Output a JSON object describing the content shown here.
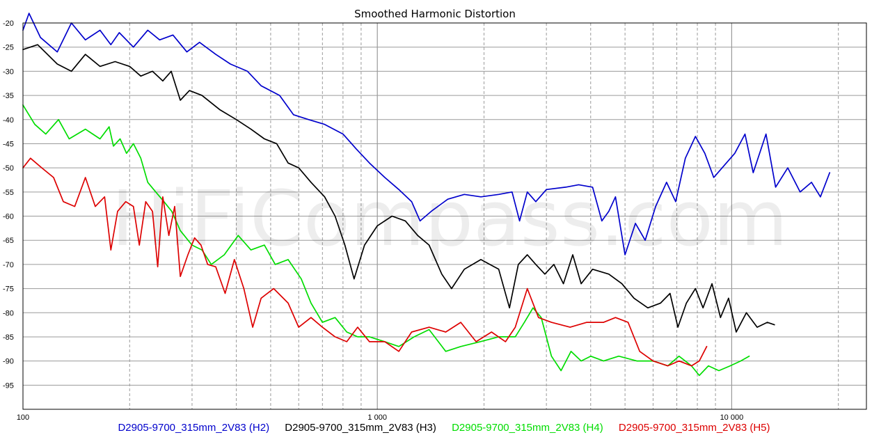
{
  "chart_data": {
    "type": "line",
    "title": "Smoothed Harmonic Distortion",
    "watermark": "HiFiCompass.com",
    "x_scale": "log",
    "xlim": [
      100,
      24000
    ],
    "ylim": [
      -100,
      -20
    ],
    "grid": true,
    "legend_position": "bottom",
    "x_tick_labels": [
      {
        "value": 100,
        "label": "100"
      },
      {
        "value": 1000,
        "label": "1 000"
      },
      {
        "value": 10000,
        "label": "10 000"
      }
    ],
    "y_ticks": [
      -20,
      -25,
      -30,
      -35,
      -40,
      -45,
      -50,
      -55,
      -60,
      -65,
      -70,
      -75,
      -80,
      -85,
      -90,
      -95
    ],
    "series": [
      {
        "name": "D2905-9700_315mm_2V83 (H2)",
        "color": "#0000cc",
        "points": [
          [
            100,
            -21.5
          ],
          [
            104,
            -18
          ],
          [
            112,
            -23
          ],
          [
            125,
            -26
          ],
          [
            137,
            -20
          ],
          [
            150,
            -23.5
          ],
          [
            165,
            -21.5
          ],
          [
            177,
            -24.5
          ],
          [
            187,
            -22
          ],
          [
            205,
            -25
          ],
          [
            225,
            -21.5
          ],
          [
            243,
            -23.5
          ],
          [
            265,
            -22.5
          ],
          [
            290,
            -26
          ],
          [
            315,
            -24
          ],
          [
            350,
            -26.5
          ],
          [
            385,
            -28.5
          ],
          [
            430,
            -30
          ],
          [
            470,
            -33
          ],
          [
            530,
            -35
          ],
          [
            580,
            -39
          ],
          [
            640,
            -40
          ],
          [
            710,
            -41
          ],
          [
            800,
            -43
          ],
          [
            870,
            -46
          ],
          [
            950,
            -49
          ],
          [
            1050,
            -52
          ],
          [
            1150,
            -54.5
          ],
          [
            1250,
            -57
          ],
          [
            1320,
            -61
          ],
          [
            1420,
            -59
          ],
          [
            1580,
            -56.5
          ],
          [
            1760,
            -55.5
          ],
          [
            1960,
            -56
          ],
          [
            2200,
            -55.5
          ],
          [
            2400,
            -55
          ],
          [
            2520,
            -61
          ],
          [
            2650,
            -55
          ],
          [
            2800,
            -57
          ],
          [
            3000,
            -54.5
          ],
          [
            3400,
            -54
          ],
          [
            3700,
            -53.5
          ],
          [
            4050,
            -54
          ],
          [
            4300,
            -61
          ],
          [
            4500,
            -59
          ],
          [
            4700,
            -56
          ],
          [
            5000,
            -68
          ],
          [
            5350,
            -61.5
          ],
          [
            5700,
            -65
          ],
          [
            6100,
            -58
          ],
          [
            6550,
            -53
          ],
          [
            6950,
            -57
          ],
          [
            7400,
            -48
          ],
          [
            7900,
            -43.5
          ],
          [
            8400,
            -47
          ],
          [
            8900,
            -52
          ],
          [
            9400,
            -50
          ],
          [
            10200,
            -47
          ],
          [
            10900,
            -43
          ],
          [
            11500,
            -51
          ],
          [
            12500,
            -43
          ],
          [
            13300,
            -54
          ],
          [
            14400,
            -50
          ],
          [
            15600,
            -55
          ],
          [
            16800,
            -53
          ],
          [
            17800,
            -56
          ],
          [
            18900,
            -51
          ]
        ]
      },
      {
        "name": "D2905-9700_315mm_2V83 (H3)",
        "color": "#000000",
        "points": [
          [
            100,
            -25.5
          ],
          [
            110,
            -24.5
          ],
          [
            125,
            -28.5
          ],
          [
            137,
            -30
          ],
          [
            150,
            -26.5
          ],
          [
            165,
            -29
          ],
          [
            182,
            -28
          ],
          [
            200,
            -29
          ],
          [
            215,
            -31
          ],
          [
            232,
            -30
          ],
          [
            248,
            -32
          ],
          [
            262,
            -30
          ],
          [
            278,
            -36
          ],
          [
            295,
            -34
          ],
          [
            320,
            -35
          ],
          [
            360,
            -38
          ],
          [
            400,
            -40
          ],
          [
            440,
            -42
          ],
          [
            480,
            -44
          ],
          [
            520,
            -45
          ],
          [
            560,
            -49
          ],
          [
            600,
            -50
          ],
          [
            650,
            -53
          ],
          [
            710,
            -56
          ],
          [
            760,
            -60
          ],
          [
            810,
            -66
          ],
          [
            860,
            -73
          ],
          [
            920,
            -66
          ],
          [
            1000,
            -62
          ],
          [
            1100,
            -60
          ],
          [
            1200,
            -61
          ],
          [
            1300,
            -64
          ],
          [
            1400,
            -66
          ],
          [
            1520,
            -72
          ],
          [
            1620,
            -75
          ],
          [
            1760,
            -71
          ],
          [
            1960,
            -69
          ],
          [
            2200,
            -71
          ],
          [
            2360,
            -79
          ],
          [
            2500,
            -70
          ],
          [
            2650,
            -68
          ],
          [
            2800,
            -70
          ],
          [
            2970,
            -72
          ],
          [
            3150,
            -70
          ],
          [
            3350,
            -74
          ],
          [
            3560,
            -68
          ],
          [
            3760,
            -74
          ],
          [
            4050,
            -71
          ],
          [
            4500,
            -72
          ],
          [
            4900,
            -74
          ],
          [
            5300,
            -77
          ],
          [
            5800,
            -79
          ],
          [
            6300,
            -78
          ],
          [
            6700,
            -76
          ],
          [
            7050,
            -83
          ],
          [
            7450,
            -78
          ],
          [
            7900,
            -75
          ],
          [
            8300,
            -79
          ],
          [
            8800,
            -74
          ],
          [
            9300,
            -81
          ],
          [
            9800,
            -77
          ],
          [
            10300,
            -84
          ],
          [
            11000,
            -80
          ],
          [
            11800,
            -83
          ],
          [
            12600,
            -82
          ],
          [
            13200,
            -82.5
          ]
        ]
      },
      {
        "name": "D2905-9700_315mm_2V83 (H4)",
        "color": "#00dd00",
        "points": [
          [
            100,
            -37
          ],
          [
            108,
            -41
          ],
          [
            116,
            -43
          ],
          [
            126,
            -40
          ],
          [
            135,
            -44
          ],
          [
            150,
            -42
          ],
          [
            165,
            -44
          ],
          [
            175,
            -41.5
          ],
          [
            180,
            -45.5
          ],
          [
            188,
            -44
          ],
          [
            196,
            -47
          ],
          [
            205,
            -45
          ],
          [
            215,
            -48
          ],
          [
            225,
            -53
          ],
          [
            237,
            -55
          ],
          [
            250,
            -57
          ],
          [
            263,
            -59
          ],
          [
            278,
            -63
          ],
          [
            300,
            -66
          ],
          [
            320,
            -67
          ],
          [
            340,
            -70
          ],
          [
            370,
            -68
          ],
          [
            405,
            -64
          ],
          [
            440,
            -67
          ],
          [
            480,
            -66
          ],
          [
            515,
            -70
          ],
          [
            560,
            -69
          ],
          [
            610,
            -73
          ],
          [
            650,
            -78
          ],
          [
            700,
            -82
          ],
          [
            760,
            -81
          ],
          [
            820,
            -84
          ],
          [
            880,
            -85
          ],
          [
            950,
            -85
          ],
          [
            1050,
            -86
          ],
          [
            1150,
            -87
          ],
          [
            1270,
            -85
          ],
          [
            1400,
            -83.5
          ],
          [
            1560,
            -88
          ],
          [
            1720,
            -87
          ],
          [
            1950,
            -86
          ],
          [
            2200,
            -85
          ],
          [
            2450,
            -85
          ],
          [
            2600,
            -82
          ],
          [
            2750,
            -79
          ],
          [
            2900,
            -81
          ],
          [
            3100,
            -89
          ],
          [
            3300,
            -92
          ],
          [
            3520,
            -88
          ],
          [
            3760,
            -90
          ],
          [
            4000,
            -89
          ],
          [
            4350,
            -90
          ],
          [
            4800,
            -89
          ],
          [
            5400,
            -90
          ],
          [
            6000,
            -90
          ],
          [
            6600,
            -91
          ],
          [
            7100,
            -89
          ],
          [
            7700,
            -91
          ],
          [
            8100,
            -93
          ],
          [
            8600,
            -91
          ],
          [
            9200,
            -92
          ],
          [
            9900,
            -91
          ],
          [
            10600,
            -90
          ],
          [
            11200,
            -89
          ]
        ]
      },
      {
        "name": "D2905-9700_315mm_2V83 (H5)",
        "color": "#dd0000",
        "points": [
          [
            100,
            -50
          ],
          [
            105,
            -48
          ],
          [
            113,
            -50
          ],
          [
            122,
            -52
          ],
          [
            130,
            -57
          ],
          [
            140,
            -58
          ],
          [
            150,
            -52
          ],
          [
            160,
            -58
          ],
          [
            170,
            -56
          ],
          [
            177,
            -67
          ],
          [
            185,
            -59
          ],
          [
            195,
            -57
          ],
          [
            205,
            -58
          ],
          [
            213,
            -66
          ],
          [
            222,
            -57
          ],
          [
            232,
            -59
          ],
          [
            240,
            -70.5
          ],
          [
            248,
            -56
          ],
          [
            258,
            -64
          ],
          [
            268,
            -58
          ],
          [
            278,
            -72.5
          ],
          [
            292,
            -68
          ],
          [
            305,
            -64.5
          ],
          [
            318,
            -66
          ],
          [
            332,
            -70
          ],
          [
            350,
            -70.5
          ],
          [
            372,
            -76
          ],
          [
            395,
            -69
          ],
          [
            420,
            -75
          ],
          [
            445,
            -83
          ],
          [
            470,
            -77
          ],
          [
            510,
            -75
          ],
          [
            560,
            -78
          ],
          [
            600,
            -83
          ],
          [
            650,
            -81
          ],
          [
            700,
            -83
          ],
          [
            760,
            -85
          ],
          [
            820,
            -86
          ],
          [
            880,
            -83
          ],
          [
            950,
            -86
          ],
          [
            1050,
            -86
          ],
          [
            1150,
            -88
          ],
          [
            1250,
            -84
          ],
          [
            1400,
            -83
          ],
          [
            1560,
            -84
          ],
          [
            1720,
            -82
          ],
          [
            1900,
            -86
          ],
          [
            2100,
            -84
          ],
          [
            2300,
            -86
          ],
          [
            2450,
            -83
          ],
          [
            2650,
            -75
          ],
          [
            2850,
            -81
          ],
          [
            3100,
            -82
          ],
          [
            3500,
            -83
          ],
          [
            3900,
            -82
          ],
          [
            4350,
            -82
          ],
          [
            4700,
            -81
          ],
          [
            5100,
            -82
          ],
          [
            5500,
            -88
          ],
          [
            6000,
            -90
          ],
          [
            6600,
            -91
          ],
          [
            7100,
            -90
          ],
          [
            7700,
            -91
          ],
          [
            8100,
            -90
          ],
          [
            8500,
            -87
          ]
        ]
      }
    ]
  }
}
